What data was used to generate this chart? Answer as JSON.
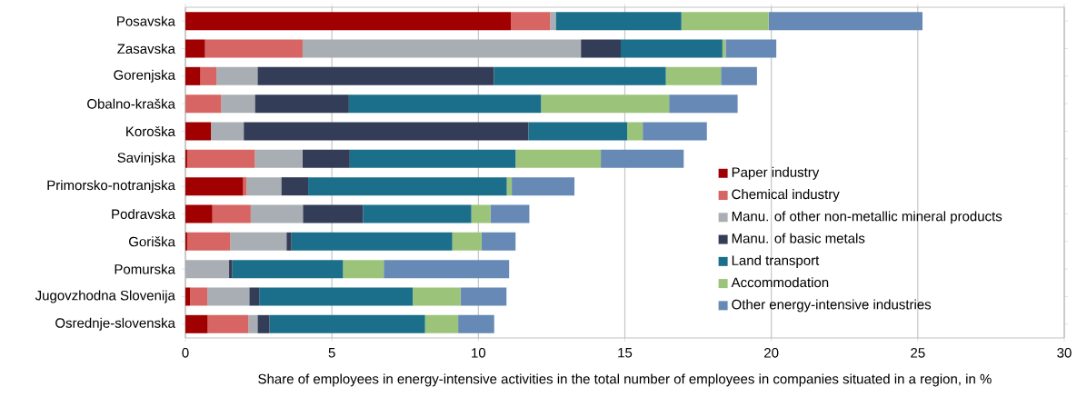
{
  "chart_data": {
    "type": "bar",
    "orientation": "horizontal",
    "stacked": true,
    "categories": [
      "Posavska",
      "Zasavska",
      "Gorenjska",
      "Obalno-kraška",
      "Koroška",
      "Savinjska",
      "Primorsko-notranjska",
      "Podravska",
      "Goriška",
      "Pomurska",
      "Jugovzhodna Slovenija",
      "Osrednje-slovenska"
    ],
    "series": [
      {
        "name": "Paper industry",
        "color": "#a00000",
        "values": [
          11.11,
          0.67,
          0.51,
          0,
          0.87,
          0.06,
          1.97,
          0.92,
          0.06,
          0,
          0.16,
          0.76
        ]
      },
      {
        "name": "Chemical industry",
        "color": "#d66563",
        "values": [
          1.34,
          3.33,
          0.55,
          1.22,
          0,
          2.31,
          0.12,
          1.31,
          1.47,
          0,
          0.59,
          1.39
        ]
      },
      {
        "name": "Manu. of other non-metallic mineral products",
        "color": "#a8aeb3",
        "values": [
          0.19,
          9.5,
          1.4,
          1.15,
          1.12,
          1.63,
          1.18,
          1.78,
          1.92,
          1.49,
          1.43,
          0.31
        ]
      },
      {
        "name": "Manu. of basic metals",
        "color": "#333d58",
        "values": [
          0,
          1.36,
          8.07,
          3.21,
          9.72,
          1.61,
          0.92,
          2.05,
          0.17,
          0.11,
          0.34,
          0.41
        ]
      },
      {
        "name": "Land transport",
        "color": "#1b6f8a",
        "values": [
          4.29,
          3.47,
          5.87,
          6.56,
          3.37,
          5.66,
          6.78,
          3.7,
          5.49,
          3.78,
          5.24,
          5.31
        ]
      },
      {
        "name": "Accommodation",
        "color": "#9bc47a",
        "values": [
          2.98,
          0.11,
          1.88,
          4.37,
          0.53,
          2.91,
          0.17,
          0.65,
          1.0,
          1.39,
          1.63,
          1.13
        ]
      },
      {
        "name": "Other energy-intensive industries",
        "color": "#6689b6",
        "values": [
          5.25,
          1.73,
          1.23,
          2.34,
          2.19,
          2.83,
          2.14,
          1.33,
          1.16,
          4.28,
          1.57,
          1.23
        ]
      }
    ],
    "xlim": [
      0,
      30
    ],
    "xticks": [
      0,
      5,
      10,
      15,
      20,
      25,
      30
    ],
    "xlabel": "Share of employees in energy-intensive activities in the total number of employees in companies situated in a region, in %",
    "grid": "x",
    "legend": "right"
  }
}
